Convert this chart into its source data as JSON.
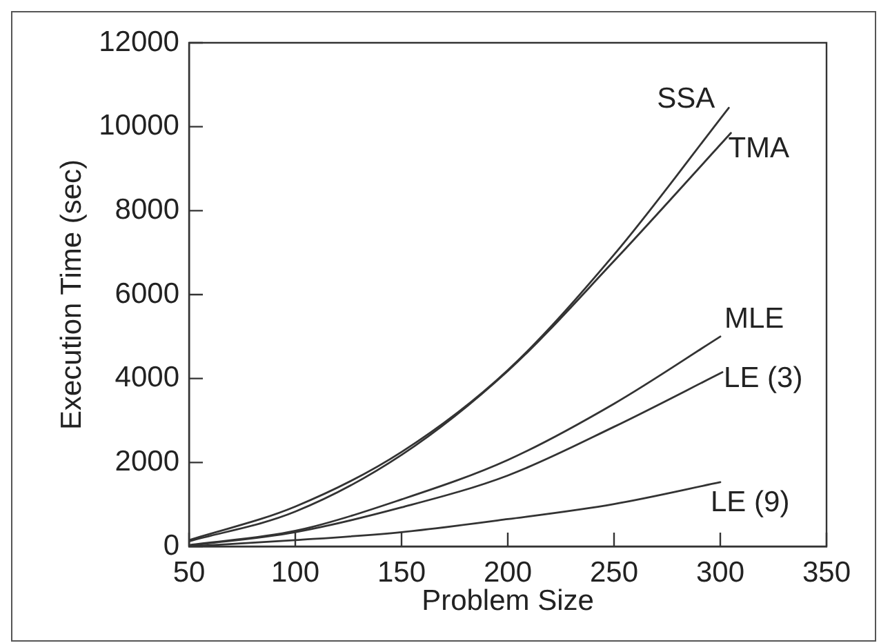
{
  "chart_data": {
    "type": "line",
    "xlabel": "Problem Size",
    "ylabel": "Execution Time (sec)",
    "xlim": [
      50,
      350
    ],
    "xticks": [
      50,
      100,
      150,
      200,
      250,
      300,
      350
    ],
    "ylim": [
      0,
      12000
    ],
    "yticks": [
      0,
      2000,
      4000,
      6000,
      8000,
      10000,
      12000
    ],
    "grid": false,
    "legend": false,
    "marker": "none",
    "line_style": "solid",
    "series": [
      {
        "name": "SSA",
        "color": "#333333",
        "x": [
          50,
          100,
          150,
          200,
          250,
          304
        ],
        "values": [
          150,
          950,
          2250,
          4200,
          6950,
          10450
        ]
      },
      {
        "name": "TMA",
        "color": "#333333",
        "x": [
          50,
          100,
          150,
          200,
          250,
          305
        ],
        "values": [
          120,
          830,
          2180,
          4180,
          6800,
          9850
        ]
      },
      {
        "name": "MLE",
        "color": "#333333",
        "x": [
          50,
          100,
          150,
          200,
          250,
          300
        ],
        "values": [
          30,
          370,
          1120,
          2060,
          3400,
          5000
        ]
      },
      {
        "name": "LE (3)",
        "color": "#333333",
        "x": [
          50,
          100,
          150,
          200,
          250,
          301
        ],
        "values": [
          20,
          340,
          930,
          1690,
          2850,
          4150
        ]
      },
      {
        "name": "LE (9)",
        "color": "#333333",
        "x": [
          50,
          100,
          150,
          200,
          250,
          300
        ],
        "values": [
          0,
          150,
          340,
          650,
          1010,
          1530
        ]
      }
    ]
  }
}
